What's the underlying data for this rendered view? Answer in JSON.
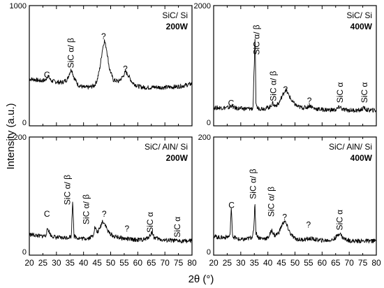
{
  "chart_data": {
    "type": "line",
    "xlabel": "2θ (°)",
    "ylabel": "Intensity (a.u.)",
    "xlim": [
      20,
      80
    ],
    "x_ticks": [
      "20",
      "25",
      "30",
      "35",
      "40",
      "45",
      "50",
      "55",
      "60",
      "65",
      "70",
      "75",
      "80"
    ],
    "panels": [
      {
        "id": "p1",
        "sample": "SiC/ Si",
        "power": "200W",
        "ylim": [
          0,
          1000
        ],
        "ylim_labels": [
          "0",
          "1000"
        ],
        "peaks": [
          {
            "label": "C",
            "x": 26.5,
            "y": 400,
            "rotated": false
          },
          {
            "label": "SiC α/ β",
            "x": 35.3,
            "y": 480,
            "rotated": true
          },
          {
            "label": "?",
            "x": 47.4,
            "y": 720,
            "rotated": false
          },
          {
            "label": "?",
            "x": 55.4,
            "y": 450,
            "rotated": false
          }
        ],
        "series": {
          "x": [
            20,
            22,
            24,
            26,
            26.8,
            28,
            30,
            32,
            34,
            35,
            35.6,
            36.5,
            38,
            40,
            42,
            44,
            45,
            46,
            47,
            47.7,
            48.5,
            49.5,
            51,
            53,
            54.5,
            55.5,
            56.5,
            58,
            60,
            62,
            64,
            66,
            68,
            70,
            72,
            74,
            76,
            78,
            80
          ],
          "y": [
            390,
            385,
            375,
            380,
            420,
            375,
            365,
            360,
            385,
            450,
            470,
            400,
            340,
            320,
            320,
            335,
            380,
            480,
            640,
            710,
            640,
            480,
            380,
            370,
            410,
            450,
            420,
            360,
            330,
            320,
            318,
            322,
            320,
            320,
            322,
            325,
            330,
            340,
            350
          ]
        }
      },
      {
        "id": "p2",
        "sample": "SiC/ Si",
        "power": "400W",
        "ylim": [
          0,
          2000
        ],
        "ylim_labels": [
          "0",
          "2000"
        ],
        "peaks": [
          {
            "label": "C",
            "x": 26.4,
            "y": 330,
            "rotated": false
          },
          {
            "label": "SiC α/ β",
            "x": 35.8,
            "y": 1180,
            "rotated": true
          },
          {
            "label": "SiC α/ β",
            "x": 42.0,
            "y": 410,
            "rotated": true
          },
          {
            "label": "?",
            "x": 46.5,
            "y": 560,
            "rotated": false
          },
          {
            "label": "?",
            "x": 55.3,
            "y": 370,
            "rotated": false
          },
          {
            "label": "SiC α",
            "x": 66.6,
            "y": 380,
            "rotated": true
          },
          {
            "label": "SiC α",
            "x": 75.6,
            "y": 380,
            "rotated": true
          }
        ],
        "series": {
          "x": [
            20,
            22,
            24,
            26,
            26.6,
            27.5,
            29,
            31,
            33,
            34.5,
            35.3,
            35.6,
            36,
            37,
            39,
            41,
            41.7,
            42.5,
            44,
            45.3,
            46.5,
            47.5,
            49,
            51,
            53,
            54.5,
            55.5,
            57,
            60,
            63,
            65,
            66.7,
            67.5,
            70,
            72,
            74,
            75.5,
            76.5,
            78,
            80
          ],
          "y": [
            300,
            300,
            300,
            305,
            340,
            300,
            290,
            285,
            285,
            290,
            1500,
            400,
            300,
            290,
            290,
            320,
            380,
            330,
            370,
            500,
            600,
            530,
            400,
            320,
            300,
            310,
            340,
            290,
            270,
            265,
            265,
            320,
            270,
            260,
            258,
            258,
            300,
            262,
            260,
            258
          ]
        }
      },
      {
        "id": "p3",
        "sample": "SiC/ AlN/ Si",
        "power": "200W",
        "ylim": [
          0,
          200
        ],
        "ylim_labels": [
          "0",
          "200"
        ],
        "peaks": [
          {
            "label": "C",
            "x": 26.5,
            "y": 65,
            "rotated": false
          },
          {
            "label": "SiC α/ β",
            "x": 34.0,
            "y": 85,
            "rotated": true
          },
          {
            "label": "SiC α/ β",
            "x": 41.0,
            "y": 52,
            "rotated": true
          },
          {
            "label": "?",
            "x": 47.6,
            "y": 65,
            "rotated": false
          },
          {
            "label": "?",
            "x": 56.0,
            "y": 40,
            "rotated": false
          },
          {
            "label": "SiC α",
            "x": 64.5,
            "y": 38,
            "rotated": true
          },
          {
            "label": "SiC α",
            "x": 74.6,
            "y": 30,
            "rotated": true
          }
        ],
        "series": {
          "x": [
            20,
            22,
            24,
            26,
            26.8,
            28,
            30,
            32,
            34,
            35.5,
            36,
            36.5,
            38,
            40,
            42,
            43.5,
            44.2,
            45,
            46,
            47,
            48,
            49,
            51,
            53,
            55,
            57,
            59,
            61,
            63,
            64.5,
            65.3,
            66,
            68,
            70,
            72,
            74,
            76,
            78,
            80
          ],
          "y": [
            35,
            34,
            32,
            33,
            45,
            33,
            30,
            29,
            30,
            32,
            95,
            32,
            29,
            28,
            29,
            33,
            48,
            38,
            45,
            58,
            52,
            40,
            32,
            30,
            28,
            27,
            26,
            26,
            27,
            33,
            40,
            30,
            27,
            25,
            25,
            24,
            24,
            24,
            24
          ]
        }
      },
      {
        "id": "p4",
        "sample": "SiC/ AlN/ Si",
        "power": "400W",
        "ylim": [
          0,
          200
        ],
        "ylim_labels": [
          "0",
          "200"
        ],
        "peaks": [
          {
            "label": "C",
            "x": 26.6,
            "y": 80,
            "rotated": false
          },
          {
            "label": "SiC α/ β",
            "x": 34.5,
            "y": 95,
            "rotated": true
          },
          {
            "label": "SiC α/ β",
            "x": 41.3,
            "y": 65,
            "rotated": true
          },
          {
            "label": "?",
            "x": 46.2,
            "y": 60,
            "rotated": false
          },
          {
            "label": "?",
            "x": 55.0,
            "y": 47,
            "rotated": false
          },
          {
            "label": "SiC α",
            "x": 66.5,
            "y": 42,
            "rotated": true
          }
        ],
        "series": {
          "x": [
            20,
            22,
            24,
            26,
            26.5,
            27,
            28.5,
            30,
            32,
            34,
            34.8,
            35.2,
            35.6,
            36.5,
            38,
            40,
            41.5,
            42.5,
            44,
            45.3,
            46.2,
            47,
            48.5,
            50,
            52,
            54,
            56,
            58,
            60,
            62,
            64,
            65.5,
            66.5,
            67.5,
            69,
            71,
            73,
            75,
            77,
            80
          ],
          "y": [
            32,
            30,
            30,
            32,
            80,
            32,
            28,
            26,
            27,
            30,
            40,
            92,
            38,
            30,
            28,
            29,
            42,
            33,
            38,
            52,
            58,
            50,
            35,
            28,
            26,
            27,
            28,
            26,
            25,
            25,
            26,
            32,
            38,
            30,
            26,
            24,
            24,
            24,
            24,
            24
          ]
        }
      }
    ]
  }
}
